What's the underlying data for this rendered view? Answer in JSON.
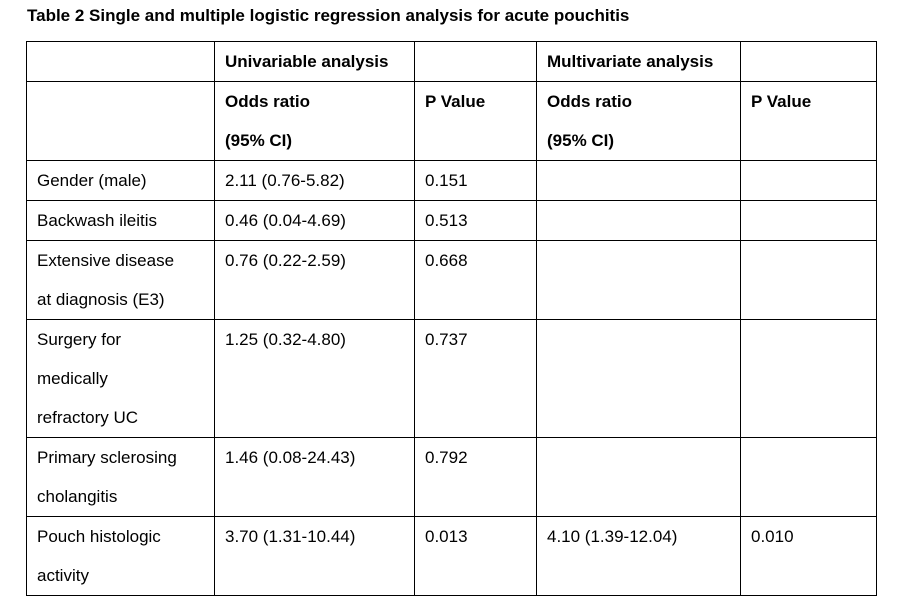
{
  "caption": "Table 2 Single and multiple logistic regression analysis for acute pouchitis",
  "header": {
    "group_univariable": "Univariable analysis",
    "group_multivariate": "Multivariate analysis",
    "odds_ratio": "Odds ratio",
    "ci": "(95% CI)",
    "p_value": "P Value"
  },
  "rows": [
    {
      "label_lines": [
        "Gender (male)"
      ],
      "uni_or": "2.11 (0.76-5.82)",
      "uni_p": "0.151",
      "multi_or": "",
      "multi_p": ""
    },
    {
      "label_lines": [
        "Backwash ileitis"
      ],
      "uni_or": "0.46 (0.04-4.69)",
      "uni_p": "0.513",
      "multi_or": "",
      "multi_p": ""
    },
    {
      "label_lines": [
        "Extensive disease",
        "at diagnosis (E3)"
      ],
      "uni_or": "0.76 (0.22-2.59)",
      "uni_p": "0.668",
      "multi_or": "",
      "multi_p": ""
    },
    {
      "label_lines": [
        "Surgery for",
        "medically",
        "refractory UC"
      ],
      "uni_or": "1.25 (0.32-4.80)",
      "uni_p": "0.737",
      "multi_or": "",
      "multi_p": ""
    },
    {
      "label_lines": [
        "Primary sclerosing",
        "cholangitis"
      ],
      "uni_or": "1.46 (0.08-24.43)",
      "uni_p": "0.792",
      "multi_or": "",
      "multi_p": ""
    },
    {
      "label_lines": [
        "Pouch histologic",
        "activity"
      ],
      "uni_or": "3.70 (1.31-10.44)",
      "uni_p": "0.013",
      "multi_or": "4.10 (1.39-12.04)",
      "multi_p": "0.010"
    }
  ]
}
